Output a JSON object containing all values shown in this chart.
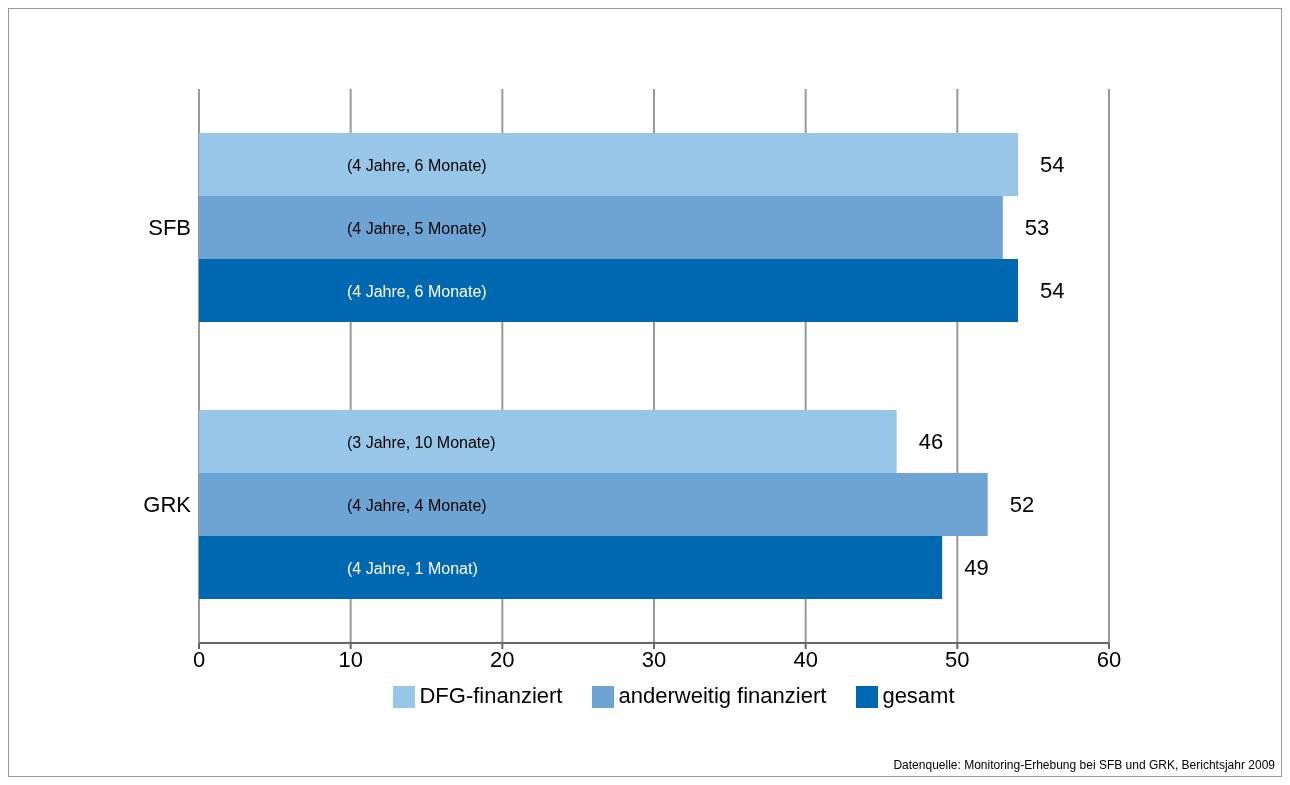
{
  "chart_data": {
    "type": "bar",
    "orientation": "horizontal",
    "categories": [
      "SFB",
      "GRK"
    ],
    "series": [
      {
        "name": "DFG-finanziert",
        "color": "#97c6e8",
        "values": [
          54,
          46
        ]
      },
      {
        "name": "anderweitig finanziert",
        "color": "#6ea4d4",
        "values": [
          53,
          52
        ]
      },
      {
        "name": "gesamt",
        "color": "#0068b0",
        "values": [
          54,
          49
        ]
      }
    ],
    "xlim": [
      0,
      60
    ],
    "xticks": [
      0,
      10,
      20,
      30,
      40,
      50,
      60
    ],
    "grid": "x",
    "legend": "bottom",
    "data_labels": true,
    "annotations": [
      "(4 Jahre, 6 Monate)",
      "(4 Jahre, 5 Monate)",
      "(4 Jahre, 6 Monate)",
      "(3 Jahre, 10 Monate)",
      "(4 Jahre, 4 Monate)",
      "(4 Jahre, 1 Monat)",
      "Datenquelle: Monitoring-Erhebung bei SFB und GRK, Berichtsjahr 2009"
    ]
  }
}
